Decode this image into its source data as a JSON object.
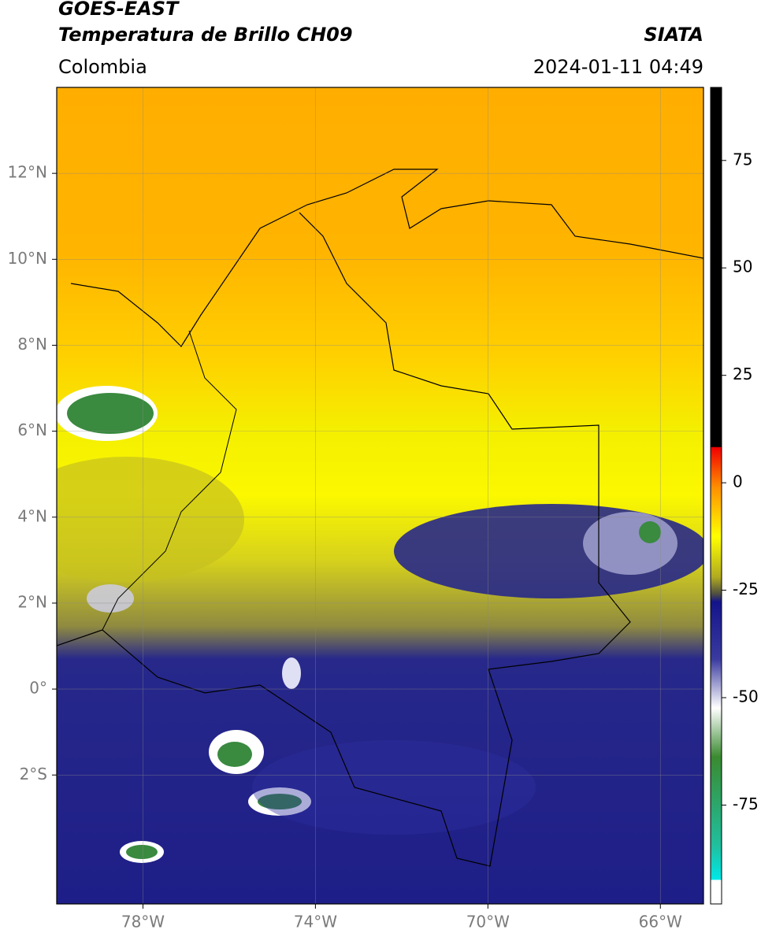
{
  "header": {
    "title": "GOES-EAST",
    "subtitle": "Temperatura de Brillo CH09",
    "source": "SIATA",
    "region": "Colombia",
    "datetime": "2024-01-11 04:49"
  },
  "map": {
    "xlim": [
      -80,
      -65
    ],
    "ylim": [
      -5,
      14
    ],
    "xticks": [
      {
        "value": -78,
        "label": "78°W"
      },
      {
        "value": -74,
        "label": "74°W"
      },
      {
        "value": -70,
        "label": "70°W"
      },
      {
        "value": -66,
        "label": "66°W"
      }
    ],
    "yticks": [
      {
        "value": 12,
        "label": "12°N"
      },
      {
        "value": 10,
        "label": "10°N"
      },
      {
        "value": 8,
        "label": "8°N"
      },
      {
        "value": 6,
        "label": "6°N"
      },
      {
        "value": 4,
        "label": "4°N"
      },
      {
        "value": 2,
        "label": "2°N"
      },
      {
        "value": 0,
        "label": "0°"
      },
      {
        "value": -2,
        "label": "2°S"
      }
    ],
    "grid": true
  },
  "colorbar": {
    "lim": [
      -98,
      92
    ],
    "ticks": [
      75,
      50,
      25,
      0,
      -25,
      -50,
      -75
    ]
  }
}
